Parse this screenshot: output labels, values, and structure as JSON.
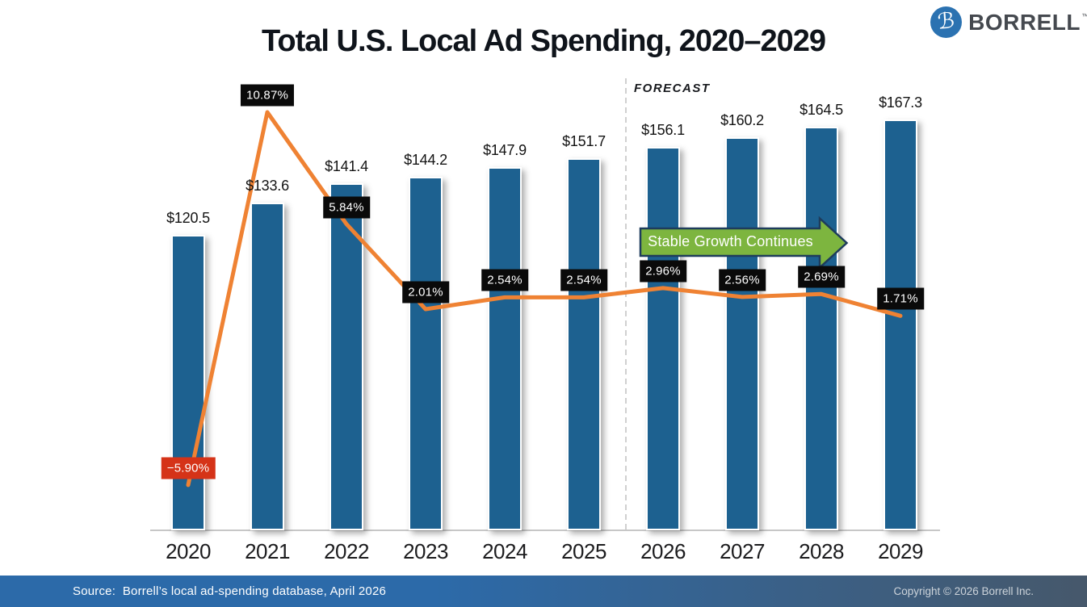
{
  "header": {
    "logo": {
      "monogram": "ℬ",
      "brand": "BORRELL",
      "trademark": "™"
    }
  },
  "chart_data": {
    "type": "bar",
    "subtype": "bar-line-combo",
    "title": "Total U.S. Local Ad Spending, 2020–2029",
    "categories": [
      "2020",
      "2021",
      "2022",
      "2023",
      "2024",
      "2025",
      "2026",
      "2027",
      "2028",
      "2029"
    ],
    "series": [
      {
        "name": "total-local-ad-spending-billions-usd",
        "type": "bar",
        "values": [
          120.5,
          133.6,
          141.4,
          144.2,
          147.9,
          151.7,
          156.1,
          160.2,
          164.5,
          167.3
        ],
        "labels": [
          "$120.5",
          "$133.6",
          "$141.4",
          "$144.2",
          "$147.9",
          "$151.7",
          "$156.1",
          "$160.2",
          "$164.5",
          "$167.3"
        ]
      },
      {
        "name": "year-over-year-growth-percent",
        "type": "line",
        "values": [
          -5.9,
          10.87,
          5.84,
          2.01,
          2.54,
          2.54,
          2.96,
          2.56,
          2.69,
          1.71
        ],
        "labels": [
          "−5.90%",
          "10.87%",
          "5.84%",
          "2.01%",
          "2.54%",
          "2.54%",
          "2.96%",
          "2.56%",
          "2.69%",
          "1.71%"
        ]
      }
    ],
    "annotations": {
      "forecast_label": "FORECAST",
      "forecast_starts_at": "2026",
      "arrow_text": "Stable Growth Continues"
    },
    "axis": {
      "value_axis_visible": false,
      "gridlines": false,
      "legend": "none"
    },
    "colors": {
      "bar": "#1d6190",
      "line": "#ef8233",
      "label_box": "#0a0a0a",
      "negative_label_box": "#d53318",
      "arrow_fill": "#7db53f",
      "arrow_border": "#1e3c5c",
      "footer_left": "#2c6aa9",
      "footer_right": "#46586b",
      "logo_circle": "#2b72b1"
    }
  },
  "footer": {
    "source": "Source:  Borrell’s local ad-spending database, April 2026",
    "copyright": "Copyright © 2026 Borrell Inc."
  }
}
